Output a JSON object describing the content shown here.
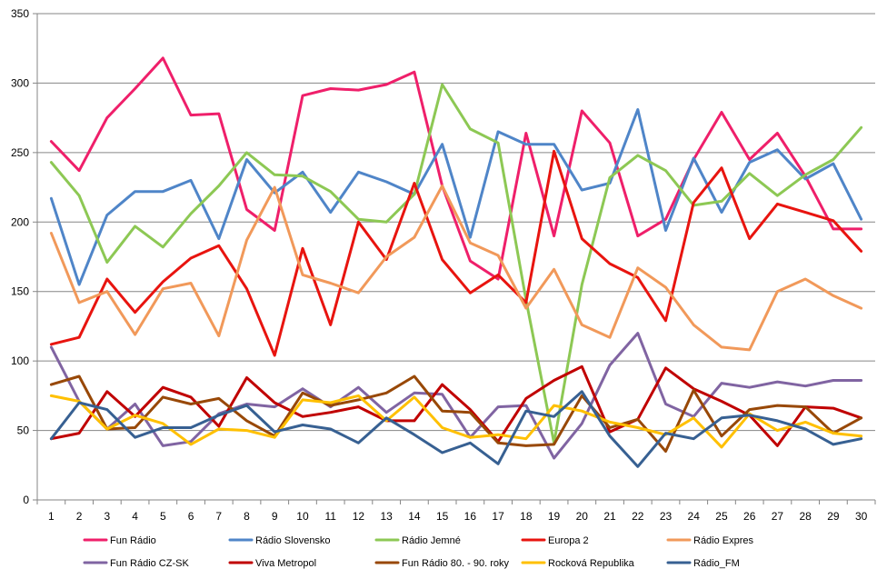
{
  "chart_data": {
    "type": "line",
    "title": "",
    "xlabel": "",
    "ylabel": "",
    "ylim": [
      0,
      350
    ],
    "yticks": [
      0,
      50,
      100,
      150,
      200,
      250,
      300,
      350
    ],
    "x": [
      1,
      2,
      3,
      4,
      5,
      6,
      7,
      8,
      9,
      10,
      11,
      12,
      13,
      14,
      15,
      16,
      17,
      18,
      19,
      20,
      21,
      22,
      23,
      24,
      25,
      26,
      27,
      28,
      29,
      30
    ],
    "grid": "horizontal",
    "legend": "bottom",
    "series": [
      {
        "name": "Fun Rádio",
        "color": "#ef1f6a",
        "values": [
          258,
          237,
          275,
          296,
          318,
          277,
          278,
          209,
          194,
          291,
          296,
          295,
          299,
          308,
          226,
          172,
          159,
          264,
          190,
          280,
          257,
          190,
          202,
          245,
          279,
          245,
          264,
          233,
          195,
          195
        ]
      },
      {
        "name": "Rádio Slovensko",
        "color": "#4f85c8",
        "values": [
          217,
          155,
          205,
          222,
          222,
          230,
          188,
          245,
          221,
          236,
          207,
          236,
          229,
          220,
          256,
          189,
          265,
          256,
          256,
          223,
          228,
          281,
          194,
          246,
          207,
          243,
          252,
          231,
          242,
          202
        ]
      },
      {
        "name": "Rádio Jemné",
        "color": "#8dc854",
        "values": [
          243,
          219,
          171,
          197,
          182,
          206,
          226,
          250,
          234,
          233,
          222,
          202,
          200,
          220,
          299,
          267,
          257,
          144,
          41,
          155,
          232,
          248,
          237,
          212,
          215,
          235,
          219,
          234,
          245,
          268
        ]
      },
      {
        "name": "Europa 2",
        "color": "#e8140f",
        "values": [
          112,
          117,
          159,
          135,
          157,
          174,
          183,
          152,
          104,
          181,
          126,
          200,
          173,
          228,
          173,
          149,
          162,
          142,
          251,
          188,
          170,
          160,
          129,
          214,
          239,
          188,
          213,
          207,
          201,
          179
        ]
      },
      {
        "name": "Rádio Expres",
        "color": "#f1995a",
        "values": [
          192,
          142,
          150,
          119,
          152,
          156,
          118,
          187,
          225,
          162,
          156,
          149,
          175,
          189,
          226,
          185,
          176,
          138,
          166,
          126,
          117,
          167,
          153,
          126,
          110,
          108,
          150,
          159,
          147,
          138
        ]
      },
      {
        "name": "Fun Rádio CZ-SK",
        "color": "#8064a2",
        "values": [
          110,
          71,
          51,
          69,
          39,
          42,
          62,
          69,
          67,
          80,
          67,
          81,
          63,
          77,
          76,
          45,
          67,
          68,
          30,
          55,
          97,
          120,
          69,
          60,
          84,
          81,
          85,
          82,
          86,
          86
        ]
      },
      {
        "name": "Viva Metropol",
        "color": "#c00000",
        "values": [
          44,
          48,
          78,
          60,
          81,
          74,
          53,
          88,
          70,
          60,
          63,
          67,
          57,
          57,
          83,
          65,
          42,
          73,
          86,
          96,
          49,
          58,
          95,
          80,
          71,
          61,
          39,
          67,
          66,
          59
        ]
      },
      {
        "name": "Fun Rádio 80. - 90. roky",
        "color": "#984807",
        "values": [
          83,
          89,
          51,
          52,
          74,
          69,
          73,
          57,
          46,
          77,
          68,
          72,
          77,
          89,
          64,
          63,
          41,
          39,
          40,
          75,
          52,
          58,
          35,
          79,
          46,
          65,
          68,
          67,
          48,
          59
        ]
      },
      {
        "name": "Rocková Republika",
        "color": "#ffc000",
        "values": [
          75,
          71,
          51,
          61,
          55,
          40,
          51,
          50,
          45,
          72,
          70,
          75,
          57,
          74,
          52,
          45,
          47,
          44,
          68,
          64,
          56,
          52,
          47,
          59,
          38,
          62,
          50,
          56,
          48,
          46
        ]
      },
      {
        "name": "Rádio_FM",
        "color": "#376092",
        "values": [
          44,
          70,
          65,
          45,
          52,
          52,
          61,
          68,
          49,
          54,
          51,
          41,
          59,
          47,
          34,
          41,
          26,
          64,
          60,
          78,
          46,
          24,
          48,
          44,
          59,
          61,
          57,
          51,
          40,
          44
        ]
      }
    ]
  }
}
